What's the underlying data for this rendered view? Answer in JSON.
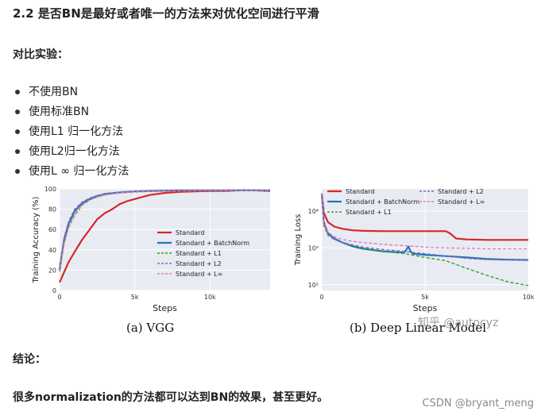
{
  "heading": "2.2 是否BN是最好或者唯一的方法来对优化空间进行平滑",
  "experiment_label": "对比实验：",
  "bullets": [
    "不使用BN",
    "使用标准BN",
    "使用L1 归一化方法",
    "使用L2归一化方法",
    "使用L ∞ 归一化方法"
  ],
  "conclusion_label": "结论：",
  "conclusion_text": "很多normalization的方法都可以达到BN的效果，甚至更好。",
  "watermark_zhihu": "知乎 @autocyz",
  "watermark_csdn": "CSDN @bryant_meng",
  "colors": {
    "standard": "#d62728",
    "batchnorm": "#1f77b4",
    "l1": "#2ca02c",
    "l2": "#9467bd",
    "linf": "#e377c2",
    "plot_bg": "#e9ebf3"
  },
  "chart_data": [
    {
      "type": "line",
      "caption": "(a) VGG",
      "xlabel": "Steps",
      "ylabel": "Training Accuracy (%)",
      "xlim": [
        0,
        14000
      ],
      "ylim": [
        0,
        100
      ],
      "xticks": [
        {
          "value": 0,
          "label": "0"
        },
        {
          "value": 5000,
          "label": "5k"
        },
        {
          "value": 10000,
          "label": "10k"
        }
      ],
      "yticks": [
        {
          "value": 0,
          "label": "0"
        },
        {
          "value": 20,
          "label": "20"
        },
        {
          "value": 40,
          "label": "40"
        },
        {
          "value": 60,
          "label": "60"
        },
        {
          "value": 80,
          "label": "80"
        },
        {
          "value": 100,
          "label": "100"
        }
      ],
      "legend_position": "lower-right",
      "grid": true,
      "series": [
        {
          "name": "Standard",
          "color_key": "standard",
          "dash": "solid",
          "width": 2.2,
          "x": [
            0,
            300,
            600,
            1000,
            1500,
            2000,
            2500,
            3000,
            3500,
            4000,
            4500,
            5000,
            6000,
            7000,
            8000,
            9000,
            10000,
            11000,
            12000,
            13000,
            14000
          ],
          "y": [
            8,
            18,
            28,
            38,
            50,
            60,
            70,
            76,
            80,
            85,
            88,
            90,
            94,
            96,
            97,
            97.5,
            98,
            98,
            98.5,
            98.5,
            98
          ]
        },
        {
          "name": "Standard + BatchNorm",
          "color_key": "batchnorm",
          "dash": "solid",
          "width": 2.2,
          "x": [
            0,
            300,
            600,
            1000,
            1500,
            2000,
            2500,
            3000,
            4000,
            5000,
            6000,
            8000,
            10000,
            12000,
            14000
          ],
          "y": [
            20,
            50,
            66,
            78,
            86,
            90,
            93,
            95,
            96.5,
            97.5,
            98,
            98.5,
            98.5,
            98.5,
            98.5
          ]
        },
        {
          "name": "Standard + L1",
          "color_key": "l1",
          "dash": "dashed",
          "width": 1.4,
          "x": [
            0,
            300,
            600,
            1000,
            1500,
            2000,
            2500,
            3000,
            4000,
            5000,
            6000,
            8000,
            10000,
            12000,
            14000
          ],
          "y": [
            22,
            48,
            62,
            74,
            84,
            89,
            92,
            94,
            96,
            97,
            97.5,
            98,
            98.5,
            98.5,
            98.5
          ]
        },
        {
          "name": "Standard + L2",
          "color_key": "l2",
          "dash": "dashed",
          "width": 1.4,
          "x": [
            0,
            300,
            600,
            1000,
            1500,
            2000,
            2500,
            3000,
            4000,
            5000,
            6000,
            8000,
            10000,
            12000,
            14000
          ],
          "y": [
            25,
            52,
            68,
            80,
            87,
            91,
            93.5,
            95,
            96.5,
            97.5,
            98,
            98.5,
            98.5,
            98.5,
            98.5
          ]
        },
        {
          "name": "Standard + L∞",
          "color_key": "linf",
          "dash": "dashed",
          "width": 1.4,
          "x": [
            0,
            300,
            600,
            1000,
            1500,
            2000,
            2500,
            3000,
            4000,
            5000,
            6000,
            8000,
            10000,
            12000,
            14000
          ],
          "y": [
            18,
            45,
            62,
            75,
            84,
            89,
            92,
            94,
            96,
            97,
            97.5,
            98,
            98.5,
            98.5,
            98.5
          ]
        }
      ]
    },
    {
      "type": "line",
      "caption": "(b) Deep Linear Model",
      "xlabel": "Steps",
      "ylabel": "Training Loss",
      "yscale": "log",
      "xlim": [
        0,
        10000
      ],
      "ylim": [
        70,
        40000
      ],
      "xticks": [
        {
          "value": 0,
          "label": "0"
        },
        {
          "value": 5000,
          "label": "5k"
        },
        {
          "value": 10000,
          "label": "10k"
        }
      ],
      "yticks": [
        {
          "value": 100,
          "label": "10²"
        },
        {
          "value": 1000,
          "label": "10³"
        },
        {
          "value": 10000,
          "label": "10⁴"
        }
      ],
      "legend_position": "top",
      "grid": true,
      "series": [
        {
          "name": "Standard",
          "color_key": "standard",
          "dash": "solid",
          "width": 2.2,
          "x": [
            0,
            100,
            300,
            600,
            1000,
            1500,
            2000,
            3000,
            4000,
            5000,
            6000,
            6200,
            6500,
            7000,
            8000,
            9000,
            10000
          ],
          "y": [
            30000,
            9000,
            5000,
            3800,
            3300,
            3000,
            2900,
            2850,
            2850,
            2850,
            2850,
            2500,
            1800,
            1700,
            1650,
            1650,
            1650
          ]
        },
        {
          "name": "Standard + BatchNorm",
          "color_key": "batchnorm",
          "dash": "solid",
          "width": 2.2,
          "x": [
            0,
            100,
            300,
            600,
            1000,
            1500,
            2000,
            3000,
            4000,
            4200,
            4300,
            4400,
            5000,
            6000,
            7000,
            8000,
            9000,
            10000
          ],
          "y": [
            30000,
            5000,
            2500,
            1800,
            1400,
            1100,
            950,
            800,
            750,
            1100,
            800,
            700,
            650,
            600,
            550,
            500,
            480,
            470
          ]
        },
        {
          "name": "Standard + L1",
          "color_key": "l1",
          "dash": "dashed",
          "width": 1.4,
          "x": [
            0,
            100,
            300,
            600,
            1000,
            1500,
            2000,
            3000,
            4000,
            5000,
            6000,
            7000,
            8000,
            9000,
            10000
          ],
          "y": [
            30000,
            4000,
            2200,
            1700,
            1400,
            1200,
            1000,
            800,
            700,
            550,
            450,
            280,
            180,
            120,
            95
          ]
        },
        {
          "name": "Standard + L2",
          "color_key": "l2",
          "dash": "dashed",
          "width": 1.4,
          "x": [
            0,
            100,
            300,
            600,
            1000,
            1500,
            2000,
            3000,
            4000,
            5000,
            6000,
            7000,
            8000,
            9000,
            10000
          ],
          "y": [
            30000,
            4500,
            2300,
            1700,
            1400,
            1200,
            1050,
            900,
            800,
            700,
            600,
            520,
            480,
            470,
            460
          ]
        },
        {
          "name": "Standard + L∞",
          "color_key": "linf",
          "dash": "dashed",
          "width": 1.4,
          "x": [
            0,
            100,
            300,
            600,
            1000,
            1500,
            2000,
            3000,
            4000,
            5000,
            6000,
            7000,
            8000,
            9000,
            10000
          ],
          "y": [
            30000,
            5500,
            2700,
            2000,
            1700,
            1500,
            1400,
            1250,
            1150,
            1050,
            1000,
            980,
            950,
            950,
            950
          ]
        }
      ]
    }
  ]
}
